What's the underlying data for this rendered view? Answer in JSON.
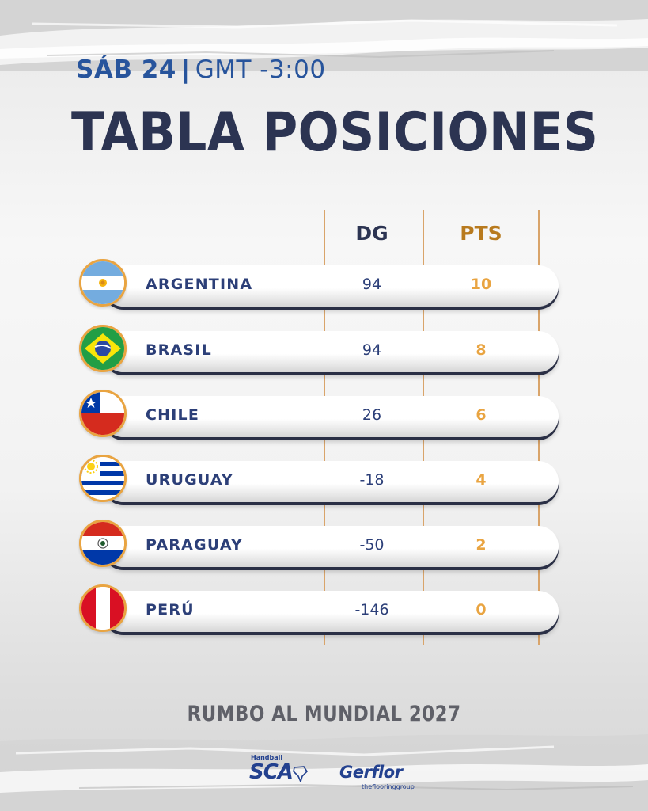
{
  "header": {
    "date": "SÁB 24",
    "separator": "|",
    "timezone": "GMT -3:00",
    "title": "TABLA POSICIONES"
  },
  "columns": {
    "dg": "DG",
    "pts": "PTS"
  },
  "standings": [
    {
      "team": "ARGENTINA",
      "dg": "94",
      "pts": "10",
      "flag_icon": "argentina-flag-icon"
    },
    {
      "team": "BRASIL",
      "dg": "94",
      "pts": "8",
      "flag_icon": "brazil-flag-icon"
    },
    {
      "team": "CHILE",
      "dg": "26",
      "pts": "6",
      "flag_icon": "chile-flag-icon"
    },
    {
      "team": "URUGUAY",
      "dg": "-18",
      "pts": "4",
      "flag_icon": "uruguay-flag-icon"
    },
    {
      "team": "PARAGUAY",
      "dg": "-50",
      "pts": "2",
      "flag_icon": "paraguay-flag-icon"
    },
    {
      "team": "PERÚ",
      "dg": "-146",
      "pts": "0",
      "flag_icon": "peru-flag-icon"
    }
  ],
  "footer": {
    "tagline": "RUMBO AL MUNDIAL 2027",
    "sponsor_1_small": "Handball",
    "sponsor_1_big": "SCA",
    "sponsor_2_big": "Gerflor",
    "sponsor_2_small": "theflooringgroup"
  },
  "colors": {
    "navy": "#2c3452",
    "blue": "#27549c",
    "gold": "#e9a441",
    "gold_dark": "#b87a1e"
  }
}
